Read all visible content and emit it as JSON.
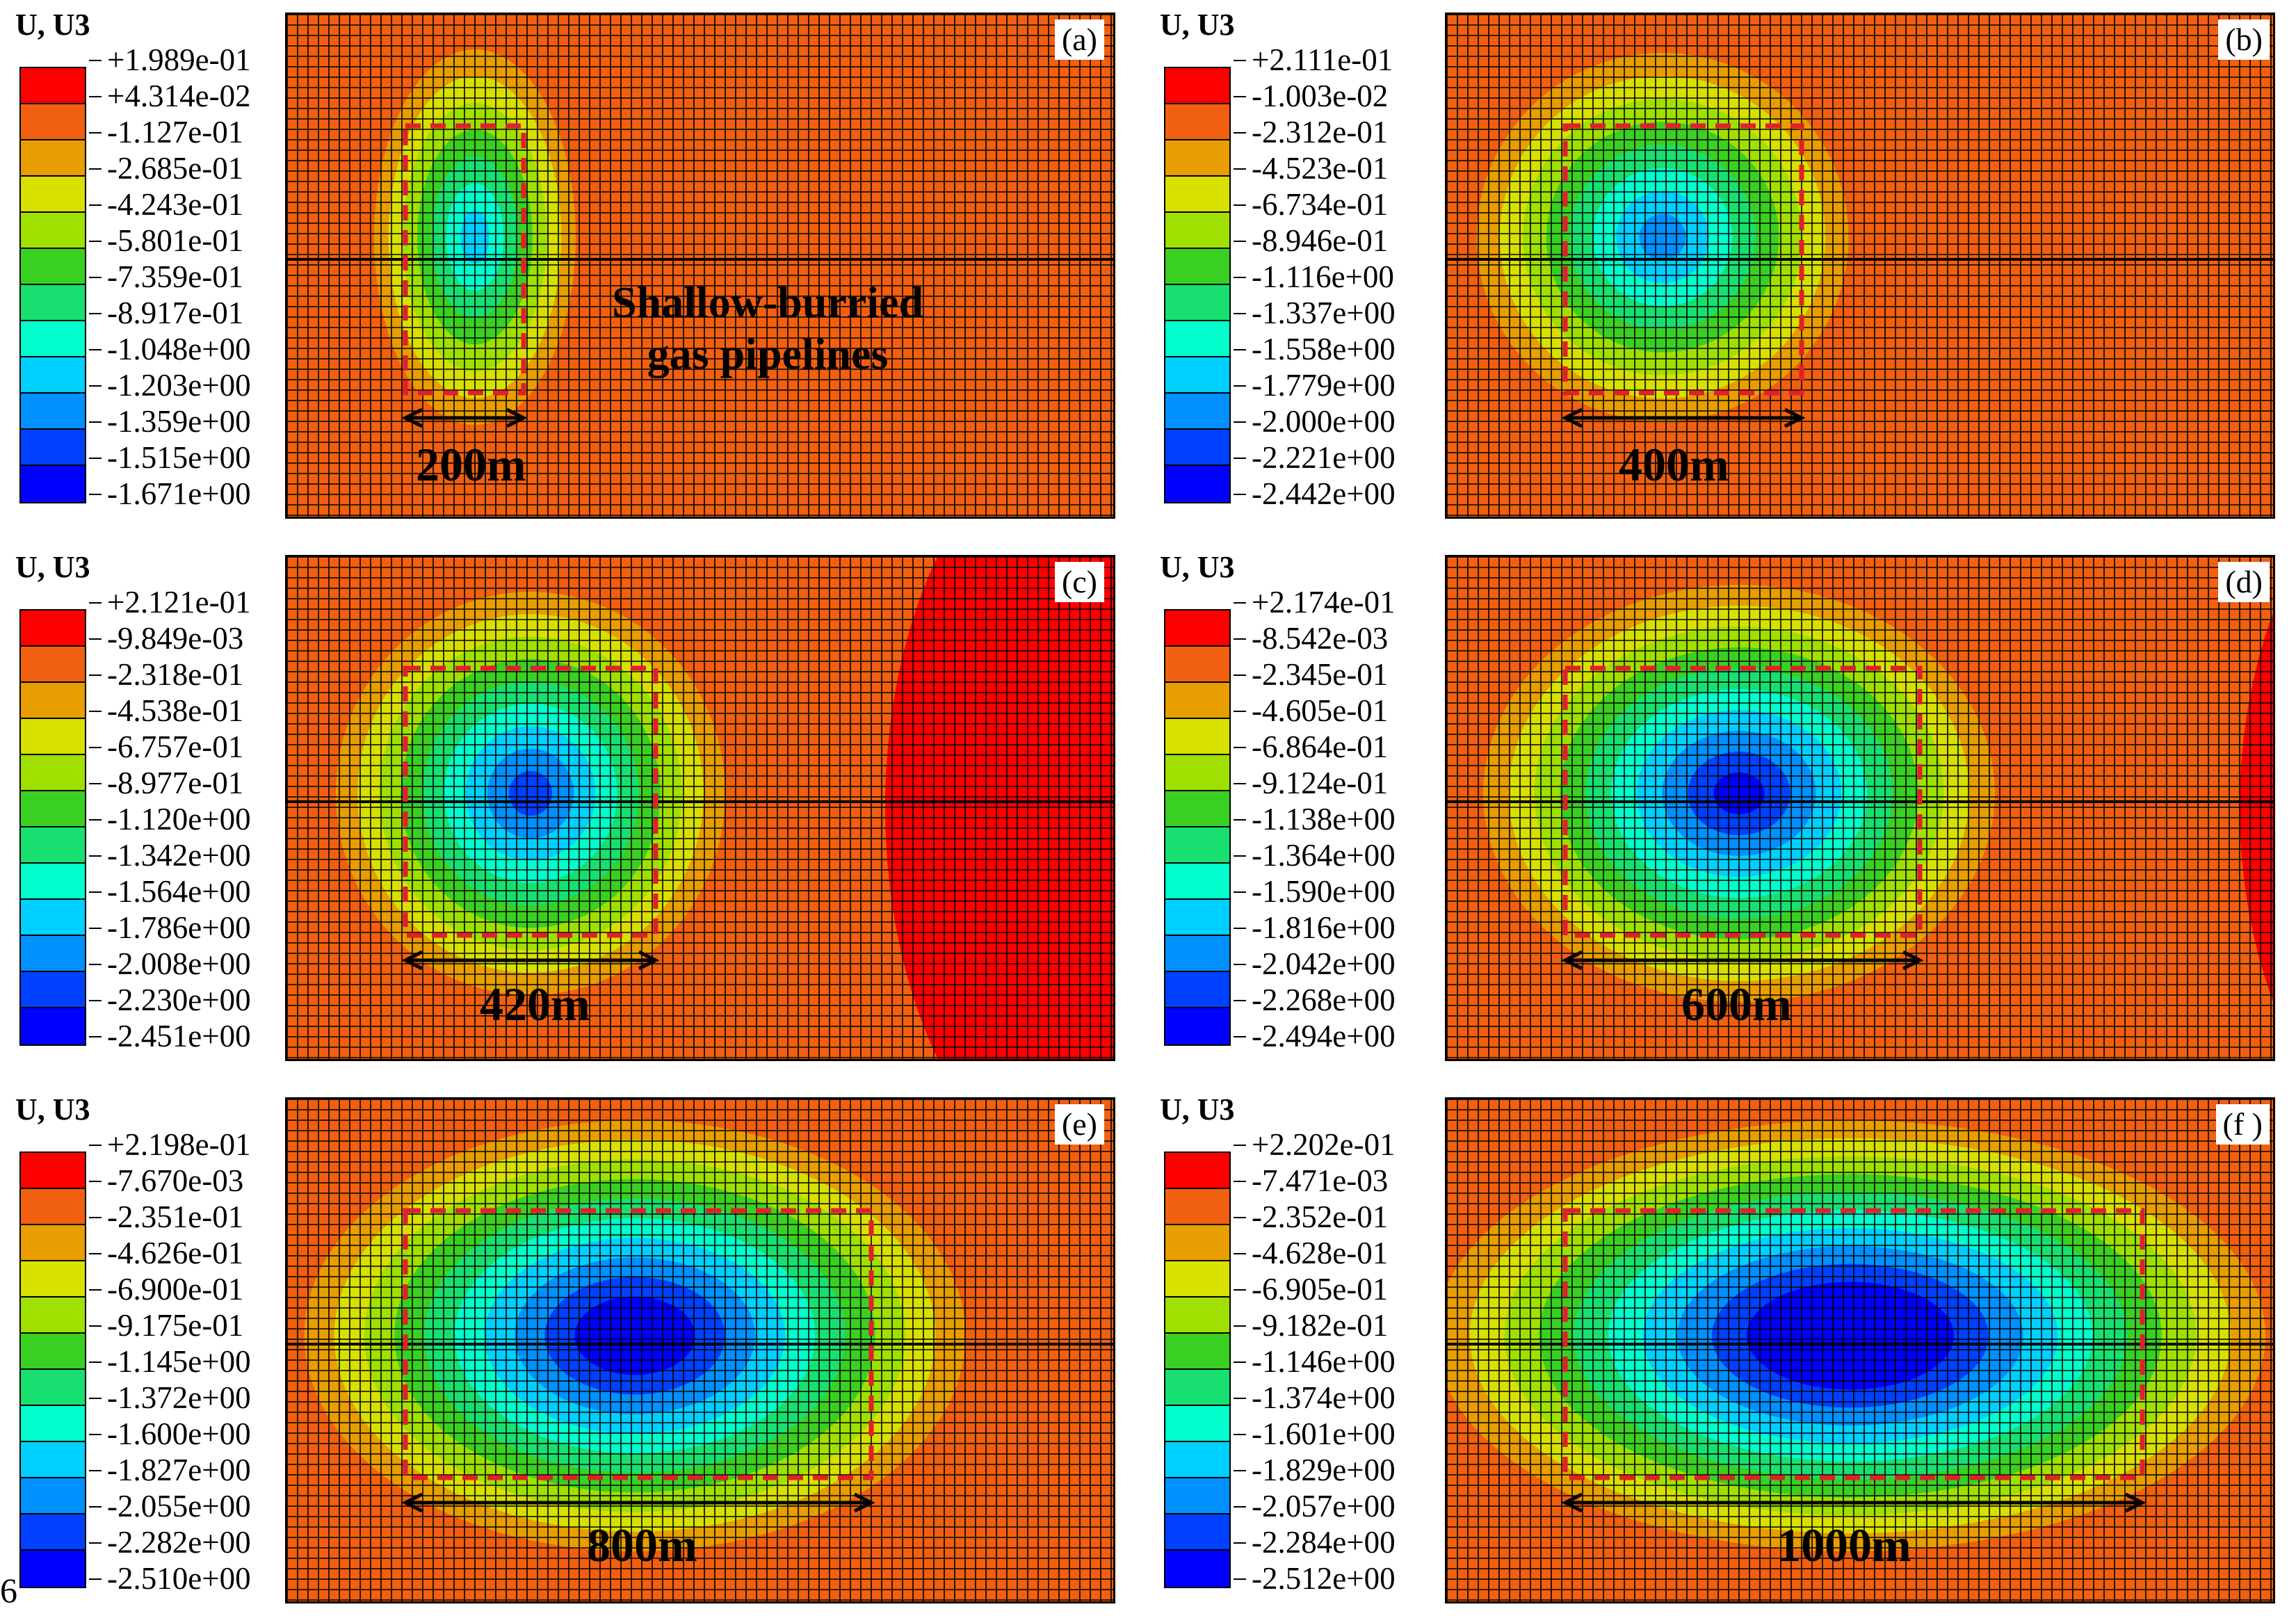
{
  "figure": {
    "page_mark": "6",
    "colors": [
      "#ff0000",
      "#f06010",
      "#e89d00",
      "#d8e000",
      "#9fe000",
      "#3ad022",
      "#18e070",
      "#00ffcc",
      "#00d0ff",
      "#0090ff",
      "#0040ff",
      "#0000ff"
    ],
    "mesh_color": "#000000",
    "boundary_color": "#e0202a"
  },
  "panels": [
    {
      "id": "a",
      "letter": "(a)",
      "legend_title": "U, U3",
      "levels": [
        "+1.989e-01",
        "+4.314e-02",
        "-1.127e-01",
        "-2.685e-01",
        "-4.243e-01",
        "-5.801e-01",
        "-7.359e-01",
        "-8.917e-01",
        "-1.048e+00",
        "-1.203e+00",
        "-1.359e+00",
        "-1.515e+00",
        "-1.671e+00"
      ],
      "span_label": "200m",
      "annotation": [
        "Shallow-burried",
        "gas pipelines"
      ]
    },
    {
      "id": "b",
      "letter": "(b)",
      "legend_title": "U, U3",
      "levels": [
        "+2.111e-01",
        "-1.003e-02",
        "-2.312e-01",
        "-4.523e-01",
        "-6.734e-01",
        "-8.946e-01",
        "-1.116e+00",
        "-1.337e+00",
        "-1.558e+00",
        "-1.779e+00",
        "-2.000e+00",
        "-2.221e+00",
        "-2.442e+00"
      ],
      "span_label": "400m"
    },
    {
      "id": "c",
      "letter": "(c)",
      "legend_title": "U, U3",
      "levels": [
        "+2.121e-01",
        "-9.849e-03",
        "-2.318e-01",
        "-4.538e-01",
        "-6.757e-01",
        "-8.977e-01",
        "-1.120e+00",
        "-1.342e+00",
        "-1.564e+00",
        "-1.786e+00",
        "-2.008e+00",
        "-2.230e+00",
        "-2.451e+00"
      ],
      "span_label": "420m"
    },
    {
      "id": "d",
      "letter": "(d)",
      "legend_title": "U, U3",
      "levels": [
        "+2.174e-01",
        "-8.542e-03",
        "-2.345e-01",
        "-4.605e-01",
        "-6.864e-01",
        "-9.124e-01",
        "-1.138e+00",
        "-1.364e+00",
        "-1.590e+00",
        "-1.816e+00",
        "-2.042e+00",
        "-2.268e+00",
        "-2.494e+00"
      ],
      "span_label": "600m"
    },
    {
      "id": "e",
      "letter": "(e)",
      "legend_title": "U, U3",
      "levels": [
        "+2.198e-01",
        "-7.670e-03",
        "-2.351e-01",
        "-4.626e-01",
        "-6.900e-01",
        "-9.175e-01",
        "-1.145e+00",
        "-1.372e+00",
        "-1.600e+00",
        "-1.827e+00",
        "-2.055e+00",
        "-2.282e+00",
        "-2.510e+00"
      ],
      "span_label": "800m"
    },
    {
      "id": "f",
      "letter": "(f )",
      "legend_title": "U, U3",
      "levels": [
        "+2.202e-01",
        "-7.471e-03",
        "-2.352e-01",
        "-4.628e-01",
        "-6.905e-01",
        "-9.182e-01",
        "-1.146e+00",
        "-1.374e+00",
        "-1.601e+00",
        "-1.829e+00",
        "-2.057e+00",
        "-2.284e+00",
        "-2.512e+00"
      ],
      "span_label": "1000m"
    }
  ]
}
